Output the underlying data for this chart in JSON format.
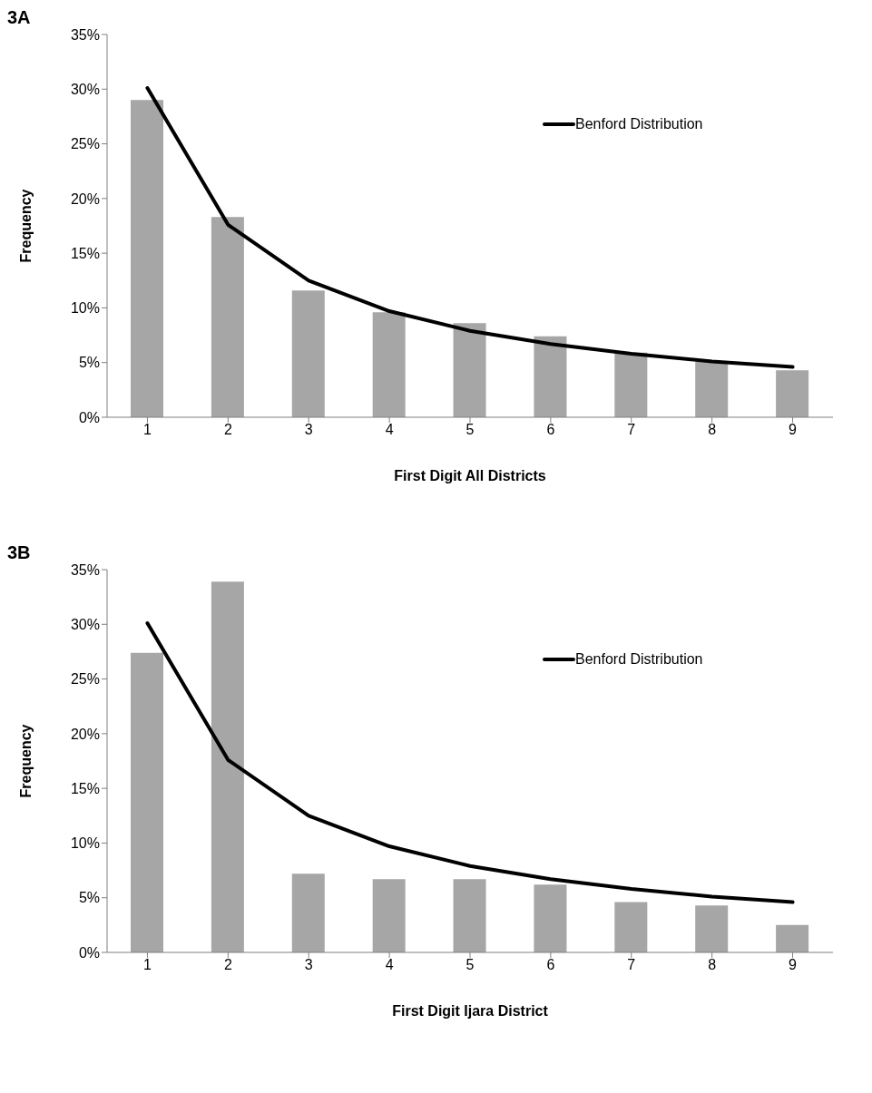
{
  "chart_data": [
    {
      "type": "bar",
      "title": "3A",
      "xlabel": "First Digit All Districts",
      "ylabel": "Frequency",
      "categories": [
        "1",
        "2",
        "3",
        "4",
        "5",
        "6",
        "7",
        "8",
        "9"
      ],
      "series": [
        {
          "color": "#a6a6a6",
          "values": [
            29.0,
            18.3,
            11.6,
            9.6,
            8.6,
            7.4,
            5.9,
            5.1,
            4.3
          ]
        },
        {
          "type": "line",
          "name": "Benford Distribution",
          "color": "#000000",
          "values": [
            30.1,
            17.6,
            12.5,
            9.7,
            7.9,
            6.7,
            5.8,
            5.1,
            4.6
          ]
        }
      ],
      "ylim": [
        0,
        35
      ],
      "yticks": [
        {
          "value": 0,
          "label": "0%"
        },
        {
          "value": 5,
          "label": "5%"
        },
        {
          "value": 10,
          "label": "10%"
        },
        {
          "value": 15,
          "label": "15%"
        },
        {
          "value": 20,
          "label": "20%"
        },
        {
          "value": 25,
          "label": "25%"
        },
        {
          "value": 30,
          "label": "30%"
        },
        {
          "value": 35,
          "label": "35%"
        }
      ],
      "grid": false,
      "legend": "top right",
      "marker": "none",
      "line_style": "solid"
    },
    {
      "type": "bar",
      "title": "3B",
      "xlabel": "First Digit Ijara District",
      "ylabel": "Frequency",
      "categories": [
        "1",
        "2",
        "3",
        "4",
        "5",
        "6",
        "7",
        "8",
        "9"
      ],
      "series": [
        {
          "color": "#a6a6a6",
          "values": [
            27.4,
            33.9,
            7.2,
            6.7,
            6.7,
            6.2,
            4.6,
            4.3,
            2.5
          ]
        },
        {
          "type": "line",
          "name": "Benford Distribution",
          "color": "#000000",
          "values": [
            30.1,
            17.6,
            12.5,
            9.7,
            7.9,
            6.7,
            5.8,
            5.1,
            4.6
          ]
        }
      ],
      "ylim": [
        0,
        35
      ],
      "yticks": [
        {
          "value": 0,
          "label": "0%"
        },
        {
          "value": 5,
          "label": "5%"
        },
        {
          "value": 10,
          "label": "10%"
        },
        {
          "value": 15,
          "label": "15%"
        },
        {
          "value": 20,
          "label": "20%"
        },
        {
          "value": 25,
          "label": "25%"
        },
        {
          "value": 30,
          "label": "30%"
        },
        {
          "value": 35,
          "label": "35%"
        }
      ],
      "grid": false,
      "legend": "top right",
      "marker": "none",
      "line_style": "solid"
    }
  ]
}
